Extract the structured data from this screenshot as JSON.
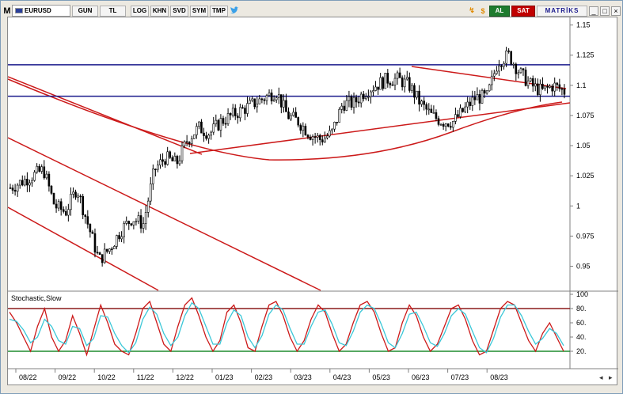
{
  "toolbar": {
    "menu_letter": "M",
    "symbol": "EURUSD",
    "periods": [
      "GUN",
      "TL"
    ],
    "tools": [
      "LOG",
      "KHN",
      "SVD",
      "SYM",
      "TMP"
    ],
    "buy_label": "AL",
    "sell_label": "SAT",
    "brand": "MATRİKS",
    "icons": [
      "twitter-icon",
      "refresh-icon",
      "dollar-icon",
      "minimize-icon",
      "maximize-icon",
      "close-icon"
    ],
    "colors": {
      "buy": "#1e7b2e",
      "sell": "#c00000",
      "brand": "#1a1a8c"
    }
  },
  "chart_data": [
    {
      "type": "candlestick",
      "symbol": "EURUSD",
      "x_tick_labels": [
        "08/22",
        "09/22",
        "10/22",
        "11/22",
        "12/22",
        "01/23",
        "02/23",
        "03/23",
        "04/23",
        "05/23",
        "06/23",
        "07/23",
        "08/23"
      ],
      "y_tick_labels": [
        "1.15",
        "1.125",
        "1.1",
        "1.075",
        "1.05",
        "1.025",
        "1",
        "0.975",
        "0.95"
      ],
      "ylim": [
        0.93,
        1.155
      ],
      "close_path": [
        [
          "08/22",
          1.015
        ],
        [
          "08/22",
          1.02
        ],
        [
          "08/22",
          1.025
        ],
        [
          "08/22",
          1.03
        ],
        [
          "09/22",
          1.0
        ],
        [
          "09/22",
          0.995
        ],
        [
          "09/22",
          1.015
        ],
        [
          "09/22",
          0.985
        ],
        [
          "10/22",
          0.955
        ],
        [
          "10/22",
          0.965
        ],
        [
          "10/22",
          0.98
        ],
        [
          "10/22",
          0.99
        ],
        [
          "11/22",
          0.985
        ],
        [
          "11/22",
          1.03
        ],
        [
          "11/22",
          1.04
        ],
        [
          "11/22",
          1.035
        ],
        [
          "12/22",
          1.055
        ],
        [
          "12/22",
          1.065
        ],
        [
          "12/22",
          1.06
        ],
        [
          "12/22",
          1.07
        ],
        [
          "01/23",
          1.075
        ],
        [
          "01/23",
          1.08
        ],
        [
          "01/23",
          1.085
        ],
        [
          "01/23",
          1.09
        ],
        [
          "02/23",
          1.095
        ],
        [
          "02/23",
          1.075
        ],
        [
          "02/23",
          1.07
        ],
        [
          "02/23",
          1.06
        ],
        [
          "03/23",
          1.055
        ],
        [
          "03/23",
          1.06
        ],
        [
          "03/23",
          1.085
        ],
        [
          "03/23",
          1.085
        ],
        [
          "04/23",
          1.095
        ],
        [
          "04/23",
          1.1
        ],
        [
          "04/23",
          1.105
        ],
        [
          "04/23",
          1.105
        ],
        [
          "05/23",
          1.1
        ],
        [
          "05/23",
          1.085
        ],
        [
          "05/23",
          1.075
        ],
        [
          "05/23",
          1.07
        ],
        [
          "06/23",
          1.07
        ],
        [
          "06/23",
          1.08
        ],
        [
          "06/23",
          1.09
        ],
        [
          "06/23",
          1.09
        ],
        [
          "07/23",
          1.12
        ],
        [
          "07/23",
          1.125
        ],
        [
          "07/23",
          1.11
        ],
        [
          "07/23",
          1.1
        ],
        [
          "08/23",
          1.095
        ],
        [
          "08/23",
          1.1
        ],
        [
          "08/23",
          1.095
        ]
      ],
      "horizontal_lines": [
        1.117,
        1.091
      ],
      "colors": {
        "candles": "#000000",
        "trendlines": "#cc1a1a",
        "moving_average": "#cc1a1a",
        "horizontal_lines": "#1a1a8c"
      }
    },
    {
      "type": "line",
      "title": "Stochastic,Slow",
      "y_tick_labels": [
        "100",
        "80",
        "60",
        "40",
        "20"
      ],
      "ylim": [
        0,
        100
      ],
      "reference_levels": [
        80,
        20
      ],
      "series": [
        {
          "values": [
            75,
            60,
            40,
            20,
            55,
            80,
            40,
            20,
            35,
            70,
            45,
            15,
            50,
            85,
            60,
            30,
            20,
            15,
            45,
            80,
            90,
            60,
            30,
            20,
            55,
            85,
            95,
            70,
            40,
            20,
            35,
            75,
            85,
            60,
            25,
            20,
            55,
            85,
            90,
            70,
            40,
            20,
            35,
            65,
            85,
            75,
            45,
            20,
            30,
            60,
            85,
            90,
            75,
            45,
            20,
            25,
            60,
            85,
            70,
            40,
            20,
            30,
            55,
            80,
            85,
            65,
            35,
            15,
            20,
            50,
            80,
            90,
            85,
            60,
            35,
            20,
            45,
            60,
            40,
            20
          ]
        },
        {
          "values": [
            65,
            62,
            50,
            32,
            40,
            65,
            55,
            35,
            30,
            55,
            52,
            28,
            38,
            70,
            68,
            45,
            28,
            18,
            32,
            65,
            82,
            72,
            45,
            28,
            40,
            70,
            88,
            80,
            55,
            30,
            30,
            60,
            78,
            70,
            40,
            25,
            42,
            72,
            85,
            78,
            52,
            30,
            30,
            55,
            75,
            78,
            58,
            32,
            28,
            48,
            75,
            85,
            80,
            58,
            32,
            25,
            45,
            72,
            75,
            55,
            32,
            27,
            45,
            70,
            80,
            72,
            48,
            25,
            18,
            38,
            68,
            85,
            85,
            70,
            48,
            30,
            38,
            52,
            45,
            28
          ]
        }
      ],
      "colors": {
        "series_0": "#cc1a1a",
        "series_1": "#3cc8d8",
        "level_high": "#8b1a1a",
        "level_low": "#1e8b2e"
      }
    }
  ]
}
